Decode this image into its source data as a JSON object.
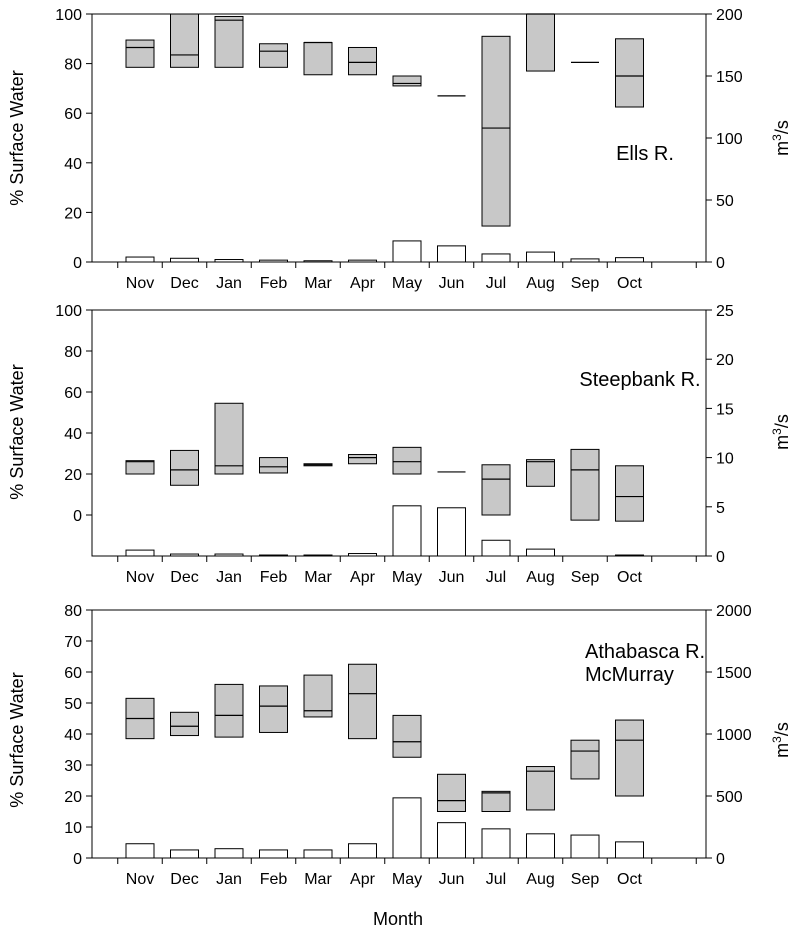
{
  "chart_data": [
    {
      "type": "box",
      "annotation": "Ells R.",
      "ylabel": "% Surface Water",
      "y2label": "m³/s",
      "ylim": [
        0,
        100
      ],
      "yticks": [
        0,
        20,
        40,
        60,
        80,
        100
      ],
      "y2lim": [
        0,
        200
      ],
      "y2ticks": [
        0,
        50,
        100,
        150,
        200
      ],
      "categories": [
        "Nov",
        "Dec",
        "Jan",
        "Feb",
        "Mar",
        "Apr",
        "May",
        "Jun",
        "Jul",
        "Aug",
        "Sep",
        "Oct"
      ],
      "boxes": [
        {
          "low": 78.5,
          "median": 86.5,
          "high": 89.5
        },
        {
          "low": 78.5,
          "median": 83.5,
          "high": 100
        },
        {
          "low": 78.5,
          "median": 97.5,
          "high": 99
        },
        {
          "low": 78.5,
          "median": 85,
          "high": 88
        },
        {
          "low": 75.5,
          "median": 88.5,
          "high": 88.5
        },
        {
          "low": 75.5,
          "median": 80.5,
          "high": 86.5
        },
        {
          "low": 71,
          "median": 72,
          "high": 75
        },
        {
          "low": 67,
          "median": 67,
          "high": 67
        },
        {
          "low": 14.5,
          "median": 54,
          "high": 91
        },
        {
          "low": 77,
          "median": 100,
          "high": 100
        },
        {
          "low": 80.5,
          "median": 80.5,
          "high": 80.5
        },
        {
          "low": 62.5,
          "median": 75,
          "high": 90
        }
      ],
      "discharge": [
        4,
        3,
        2,
        1.5,
        1,
        1.5,
        17,
        13,
        6.5,
        8,
        2.5,
        3.5
      ]
    },
    {
      "type": "box",
      "annotation": "Steepbank R.",
      "ylabel": "% Surface Water",
      "y2label": "m³/s",
      "ylim": [
        -20,
        100
      ],
      "yticks": [
        0,
        20,
        40,
        60,
        80,
        100
      ],
      "y2lim": [
        0,
        25
      ],
      "y2ticks": [
        0,
        5,
        10,
        15,
        20,
        25
      ],
      "categories": [
        "Nov",
        "Dec",
        "Jan",
        "Feb",
        "Mar",
        "Apr",
        "May",
        "Jun",
        "Jul",
        "Aug",
        "Sep",
        "Oct"
      ],
      "boxes": [
        {
          "low": 20,
          "median": 26,
          "high": 26.5
        },
        {
          "low": 14.5,
          "median": 22,
          "high": 31.5
        },
        {
          "low": 20,
          "median": 24,
          "high": 54.5
        },
        {
          "low": 20.5,
          "median": 23.5,
          "high": 28
        },
        {
          "low": 24,
          "median": 24.5,
          "high": 25
        },
        {
          "low": 25,
          "median": 28,
          "high": 29.5
        },
        {
          "low": 20,
          "median": 26,
          "high": 33
        },
        {
          "low": 21,
          "median": 21,
          "high": 21
        },
        {
          "low": 0,
          "median": 17.5,
          "high": 24.5
        },
        {
          "low": 14,
          "median": 26,
          "high": 27
        },
        {
          "low": -2.5,
          "median": 22,
          "high": 32
        },
        {
          "low": -3,
          "median": 9,
          "high": 24
        }
      ],
      "discharge": [
        0.6,
        0.2,
        0.2,
        0.1,
        0.1,
        0.25,
        5.1,
        4.9,
        1.6,
        0.7,
        0,
        0.1
      ]
    },
    {
      "type": "box",
      "annotation_lines": [
        "Athabasca R.",
        "McMurray"
      ],
      "ylabel": "% Surface Water",
      "y2label": "m³/s",
      "xlabel": "Month",
      "ylim": [
        0,
        80
      ],
      "yticks": [
        0,
        10,
        20,
        30,
        40,
        50,
        60,
        70,
        80
      ],
      "y2lim": [
        0,
        2000
      ],
      "y2ticks": [
        0,
        500,
        1000,
        1500,
        2000
      ],
      "categories": [
        "Nov",
        "Dec",
        "Jan",
        "Feb",
        "Mar",
        "Apr",
        "May",
        "Jun",
        "Jul",
        "Aug",
        "Sep",
        "Oct"
      ],
      "boxes": [
        {
          "low": 38.5,
          "median": 45,
          "high": 51.5
        },
        {
          "low": 39.5,
          "median": 42.5,
          "high": 47
        },
        {
          "low": 39,
          "median": 46,
          "high": 56
        },
        {
          "low": 40.5,
          "median": 49,
          "high": 55.5
        },
        {
          "low": 45.5,
          "median": 47.5,
          "high": 59
        },
        {
          "low": 38.5,
          "median": 53,
          "high": 62.5
        },
        {
          "low": 32.5,
          "median": 37.5,
          "high": 46
        },
        {
          "low": 15,
          "median": 18.5,
          "high": 27
        },
        {
          "low": 15,
          "median": 21,
          "high": 21.5
        },
        {
          "low": 15.5,
          "median": 28,
          "high": 29.5
        },
        {
          "low": 25.5,
          "median": 34.5,
          "high": 38
        },
        {
          "low": 20,
          "median": 38,
          "high": 44.5
        }
      ],
      "discharge": [
        115,
        65,
        75,
        65,
        65,
        115,
        485,
        285,
        235,
        195,
        185,
        130
      ]
    }
  ]
}
